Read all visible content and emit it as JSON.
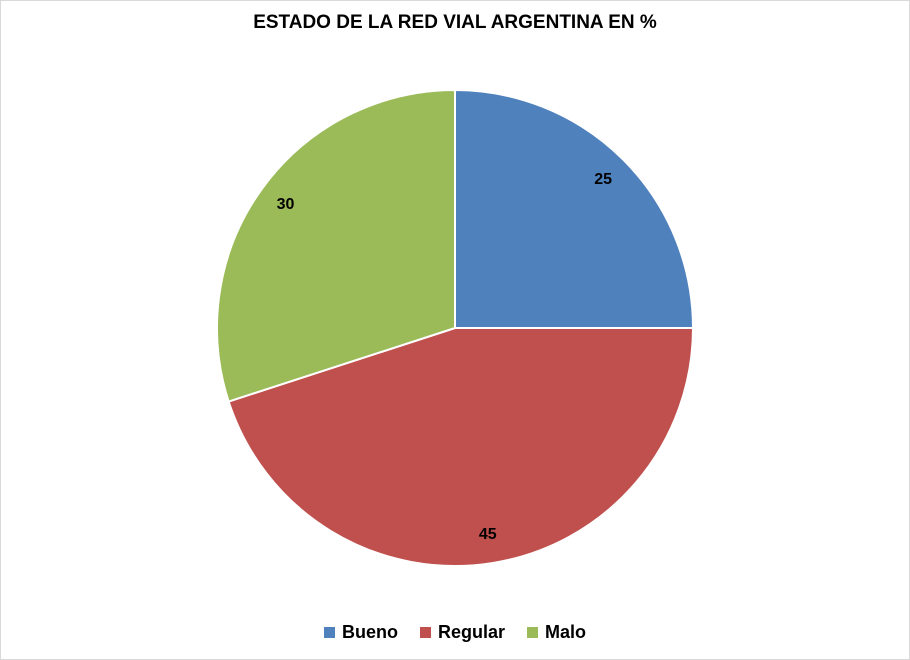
{
  "chart_data": {
    "type": "pie",
    "title": "ESTADO DE LA RED VIAL ARGENTINA  EN %",
    "categories": [
      "Bueno",
      "Regular",
      "Malo"
    ],
    "values": [
      25,
      45,
      30
    ],
    "data_labels": [
      "25",
      "45",
      "30"
    ],
    "colors": [
      "#4f81bd",
      "#c0504d",
      "#9bbb59"
    ],
    "start_angle_deg": 0,
    "direction": "clockwise",
    "legend": {
      "position": "bottom",
      "entries": [
        {
          "label": "Bueno",
          "color": "#4f81bd"
        },
        {
          "label": "Regular",
          "color": "#c0504d"
        },
        {
          "label": "Malo",
          "color": "#9bbb59"
        }
      ]
    }
  }
}
